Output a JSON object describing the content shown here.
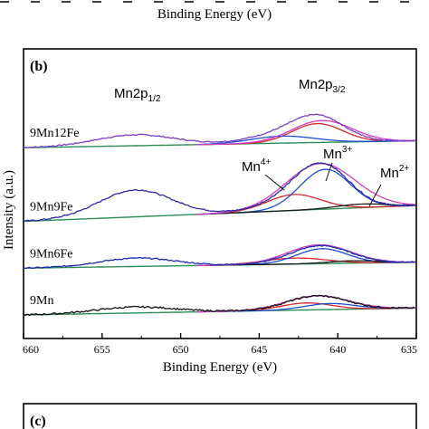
{
  "top_fragment": {
    "xlabel": "Binding Energy (eV)"
  },
  "panel_b": {
    "label": "(b)",
    "chart_data": {
      "type": "line",
      "title": "",
      "xlabel": "Binding Energy (eV)",
      "ylabel": "Intensity (a.u.)",
      "xlim": [
        660,
        635
      ],
      "x_reversed": true,
      "xticks": [
        660,
        655,
        650,
        645,
        640,
        635
      ],
      "series": [
        {
          "name": "9Mn12Fe",
          "offset": 8.2,
          "bg_lo": 0.2,
          "bg_hi": 0.55,
          "peaks": [
            [
              652.9,
              0.55,
              2.5
            ],
            [
              643.7,
              0.18,
              2.0
            ],
            [
              641.2,
              1.0,
              1.6
            ],
            [
              642.5,
              0.35,
              2.5
            ]
          ],
          "fits": [
            [
              641.3,
              0.95,
              1.6
            ],
            [
              643.5,
              0.35,
              2.0
            ],
            [
              641.0,
              1.1,
              1.9
            ]
          ],
          "noise": 0.03
        },
        {
          "name": "9Mn9Fe",
          "offset": 4.6,
          "bg_lo": 0.1,
          "bg_hi": 0.9,
          "peaks": [
            [
              652.9,
              1.35,
              2.3
            ],
            [
              642.6,
              0.6,
              2.0
            ],
            [
              640.9,
              1.9,
              1.7
            ]
          ],
          "fits": [
            [
              642.8,
              0.8,
              1.7
            ],
            [
              640.8,
              2.0,
              1.6
            ],
            [
              638.5,
              0.18,
              1.6
            ],
            [
              641.1,
              2.3,
              2.2
            ]
          ],
          "noise": 0.035
        },
        {
          "name": "9Mn6Fe",
          "offset": 2.35,
          "bg_lo": 0.0,
          "bg_hi": 0.3,
          "peaks": [
            [
              652.8,
              0.42,
              2.4
            ],
            [
              641.1,
              0.9,
              1.9
            ]
          ],
          "fits": [
            [
              642.7,
              0.3,
              2.0
            ],
            [
              641.0,
              0.75,
              1.6
            ],
            [
              639.0,
              0.12,
              1.6
            ],
            [
              641.2,
              0.95,
              2.0
            ]
          ],
          "noise": 0.03
        },
        {
          "name": "9Mn",
          "offset": 0.0,
          "bg_lo": 0.0,
          "bg_hi": 0.35,
          "peaks": [
            [
              652.9,
              0.3,
              2.5
            ],
            [
              641.3,
              0.7,
              1.9
            ]
          ],
          "fits": [
            [
              642.0,
              0.35,
              1.6
            ],
            [
              640.5,
              0.3,
              1.6
            ],
            [
              641.3,
              0.7,
              2.0
            ]
          ],
          "noise": 0.04
        }
      ],
      "annotations": {
        "mn2p12": {
          "base": "Mn2p",
          "sub": "1/2"
        },
        "mn2p32": {
          "base": "Mn2p",
          "sub": "3/2"
        },
        "mn4": {
          "base": "Mn",
          "sup": "4+"
        },
        "mn3": {
          "base": "Mn",
          "sup": "3+"
        },
        "mn2": {
          "base": "Mn",
          "sup": "2+"
        }
      },
      "fit_colors": [
        "#d6282b",
        "#1f4fd1",
        "#1b1b1b",
        "#7a1a1a"
      ],
      "colors": {
        "9Mn12Fe": "#7a3fc4",
        "9Mn9Fe": "#2d2aa8",
        "9Mn6Fe": "#1a2aa8",
        "9Mn": "#111111",
        "background": "#2e8b57",
        "envelope": "#d23ec4"
      }
    }
  },
  "panel_c": {
    "label": "(c)"
  }
}
